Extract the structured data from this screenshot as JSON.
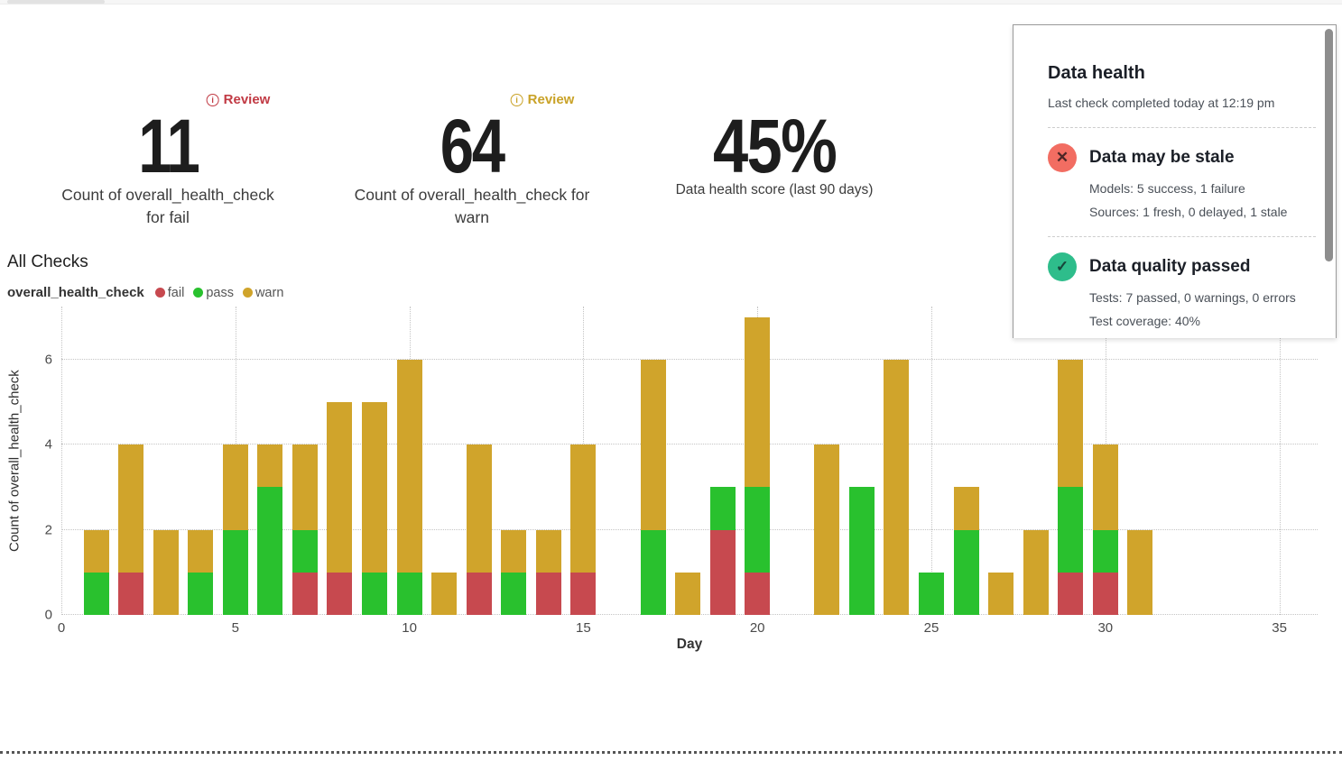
{
  "metrics": [
    {
      "badge": "Review",
      "value": "11",
      "caption": "Count of overall_health_check for fail"
    },
    {
      "badge": "Review",
      "value": "64",
      "caption": "Count of overall_health_check for warn"
    },
    {
      "value": "45%",
      "caption": "Data health score (last 90 days)"
    }
  ],
  "section": {
    "title": "All Checks"
  },
  "legend": {
    "series_label": "overall_health_check",
    "items": [
      {
        "label": "fail",
        "color": "#c7494f"
      },
      {
        "label": "pass",
        "color": "#29c12e"
      },
      {
        "label": "warn",
        "color": "#d0a42b"
      }
    ]
  },
  "chart_data": {
    "type": "bar",
    "stacked": true,
    "title": "All Checks",
    "xlabel": "Day",
    "ylabel": "Count of overall_health_check",
    "x": [
      1,
      2,
      3,
      4,
      5,
      6,
      7,
      8,
      9,
      10,
      11,
      12,
      13,
      14,
      15,
      16,
      17,
      18,
      19,
      20,
      21,
      22,
      23,
      24,
      25,
      26,
      27,
      28,
      29,
      30,
      31
    ],
    "series": [
      {
        "name": "fail",
        "color": "#c7494f",
        "values": [
          0,
          1,
          0,
          0,
          0,
          0,
          1,
          1,
          0,
          0,
          0,
          1,
          0,
          1,
          1,
          0,
          0,
          0,
          2,
          1,
          0,
          0,
          0,
          0,
          0,
          0,
          0,
          0,
          1,
          1,
          0
        ]
      },
      {
        "name": "pass",
        "color": "#29c12e",
        "values": [
          1,
          0,
          0,
          1,
          2,
          3,
          1,
          0,
          1,
          1,
          0,
          0,
          1,
          0,
          0,
          0,
          2,
          0,
          1,
          2,
          0,
          0,
          3,
          0,
          1,
          2,
          0,
          0,
          2,
          1,
          0
        ]
      },
      {
        "name": "warn",
        "color": "#d0a42b",
        "values": [
          1,
          3,
          2,
          1,
          2,
          1,
          2,
          4,
          4,
          5,
          1,
          3,
          1,
          1,
          3,
          0,
          4,
          1,
          0,
          4,
          0,
          4,
          0,
          6,
          0,
          1,
          1,
          2,
          3,
          2,
          2
        ]
      }
    ],
    "xlim": [
      0,
      36.1
    ],
    "ylim": [
      0,
      7.25
    ],
    "xticks": [
      0,
      5,
      10,
      15,
      20,
      25,
      30,
      35
    ],
    "yticks": [
      0,
      2,
      4,
      6
    ],
    "grid": "dotted",
    "legend_position": "top-left"
  },
  "panel": {
    "title": "Data health",
    "subtitle": "Last check completed today at 12:19 pm",
    "items": [
      {
        "icon": "x-circle-icon",
        "glyph": "✕",
        "status_color": "#f26d62",
        "title": "Data may be stale",
        "details": [
          "Models: 5 success, 1 failure",
          "Sources: 1 fresh, 0 delayed, 1 stale"
        ]
      },
      {
        "icon": "check-circle-icon",
        "glyph": "✓",
        "status_color": "#2ebd8b",
        "title": "Data quality passed",
        "details": [
          "Tests: 7 passed, 0 warnings, 0 errors",
          "Test coverage: 40%"
        ]
      }
    ]
  }
}
